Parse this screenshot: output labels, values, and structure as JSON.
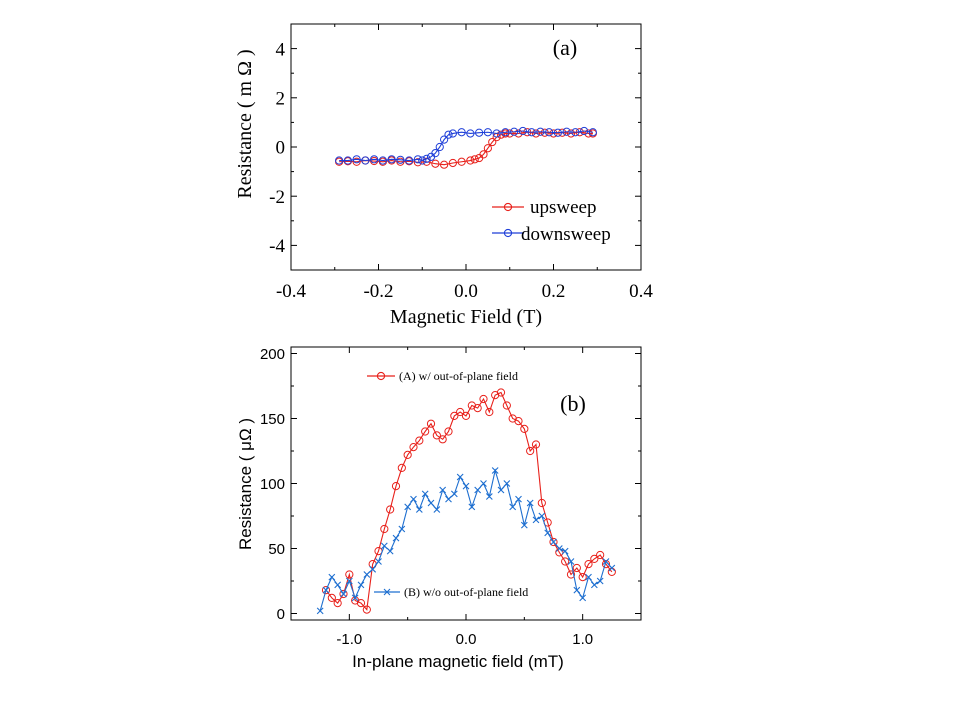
{
  "colors": {
    "red": "#e8201a",
    "blue": "#1f3fd8",
    "blue_b": "#1e6fd0",
    "axis": "#000000"
  },
  "chart_data": [
    {
      "type": "scatter",
      "panel_label": "(a)",
      "xlabel": "Magnetic Field (T)",
      "ylabel": "Resistance ( m Ω )",
      "xlim": [
        -0.4,
        0.4
      ],
      "ylim": [
        -5,
        5
      ],
      "xticks": [
        "-0.4",
        "-0.2",
        "0.0",
        "0.2",
        "0.4"
      ],
      "xtick_values": [
        -0.4,
        -0.2,
        0.0,
        0.2,
        0.4
      ],
      "yticks": [
        "4",
        "2",
        "0",
        "-2",
        "-4"
      ],
      "ytick_values": [
        4,
        2,
        0,
        -2,
        -4
      ],
      "legend_position": "bottom-right",
      "series": [
        {
          "name": "upsweep",
          "color": "red",
          "marker": "circle",
          "x": [
            -0.29,
            -0.27,
            -0.25,
            -0.23,
            -0.21,
            -0.19,
            -0.17,
            -0.15,
            -0.13,
            -0.11,
            -0.09,
            -0.07,
            -0.05,
            -0.03,
            -0.01,
            0.01,
            0.02,
            0.03,
            0.04,
            0.05,
            0.06,
            0.07,
            0.08,
            0.09,
            0.1,
            0.12,
            0.14,
            0.16,
            0.18,
            0.2,
            0.22,
            0.24,
            0.26,
            0.28,
            0.29
          ],
          "y": [
            -0.6,
            -0.58,
            -0.6,
            -0.55,
            -0.57,
            -0.6,
            -0.55,
            -0.6,
            -0.58,
            -0.62,
            -0.6,
            -0.68,
            -0.72,
            -0.65,
            -0.6,
            -0.55,
            -0.5,
            -0.45,
            -0.3,
            -0.05,
            0.2,
            0.4,
            0.5,
            0.55,
            0.55,
            0.55,
            0.6,
            0.55,
            0.58,
            0.55,
            0.58,
            0.55,
            0.6,
            0.55,
            0.55
          ]
        },
        {
          "name": "downsweep",
          "color": "blue",
          "marker": "circle",
          "x": [
            0.29,
            0.27,
            0.25,
            0.23,
            0.21,
            0.19,
            0.17,
            0.15,
            0.13,
            0.11,
            0.09,
            0.07,
            0.05,
            0.03,
            0.01,
            -0.01,
            -0.03,
            -0.04,
            -0.05,
            -0.06,
            -0.07,
            -0.08,
            -0.09,
            -0.1,
            -0.11,
            -0.13,
            -0.15,
            -0.17,
            -0.19,
            -0.21,
            -0.23,
            -0.25,
            -0.27,
            -0.29
          ],
          "y": [
            0.6,
            0.65,
            0.6,
            0.62,
            0.58,
            0.6,
            0.62,
            0.6,
            0.65,
            0.62,
            0.6,
            0.55,
            0.6,
            0.58,
            0.55,
            0.6,
            0.55,
            0.5,
            0.3,
            0.0,
            -0.25,
            -0.4,
            -0.48,
            -0.55,
            -0.5,
            -0.55,
            -0.52,
            -0.5,
            -0.55,
            -0.5,
            -0.55,
            -0.5,
            -0.55,
            -0.55
          ]
        }
      ]
    },
    {
      "type": "line",
      "panel_label": "(b)",
      "xlabel": "In-plane magnetic field (mT)",
      "ylabel": "Resistance ( μΩ )",
      "xlim": [
        -1.5,
        1.5
      ],
      "ylim": [
        -5,
        205
      ],
      "xticks": [
        "-1.0",
        "0.0",
        "1.0"
      ],
      "xtick_values": [
        -1.0,
        0.0,
        1.0
      ],
      "yticks": [
        "200",
        "150",
        "100",
        "50",
        "0"
      ],
      "ytick_values": [
        200,
        150,
        100,
        50,
        0
      ],
      "series": [
        {
          "name": "(A) w/ out-of-plane field",
          "color": "red",
          "marker": "circle",
          "x": [
            -1.2,
            -1.15,
            -1.1,
            -1.05,
            -1.0,
            -0.95,
            -0.9,
            -0.85,
            -0.8,
            -0.75,
            -0.7,
            -0.65,
            -0.6,
            -0.55,
            -0.5,
            -0.45,
            -0.4,
            -0.35,
            -0.3,
            -0.25,
            -0.2,
            -0.15,
            -0.1,
            -0.05,
            0.0,
            0.05,
            0.1,
            0.15,
            0.2,
            0.25,
            0.3,
            0.35,
            0.4,
            0.45,
            0.5,
            0.55,
            0.6,
            0.65,
            0.7,
            0.75,
            0.8,
            0.85,
            0.9,
            0.95,
            1.0,
            1.05,
            1.1,
            1.15,
            1.2,
            1.25
          ],
          "y": [
            18,
            12,
            8,
            15,
            30,
            10,
            8,
            3,
            38,
            48,
            65,
            80,
            98,
            112,
            122,
            128,
            133,
            140,
            146,
            137,
            134,
            140,
            152,
            155,
            152,
            160,
            158,
            165,
            155,
            168,
            170,
            160,
            150,
            148,
            142,
            125,
            130,
            85,
            70,
            55,
            47,
            40,
            30,
            35,
            28,
            38,
            42,
            45,
            38,
            32
          ]
        },
        {
          "name": "(B) w/o out-of-plane field",
          "color": "blue_b",
          "marker": "x",
          "x": [
            -1.25,
            -1.2,
            -1.15,
            -1.1,
            -1.05,
            -1.0,
            -0.95,
            -0.9,
            -0.85,
            -0.8,
            -0.75,
            -0.7,
            -0.65,
            -0.6,
            -0.55,
            -0.5,
            -0.45,
            -0.4,
            -0.35,
            -0.3,
            -0.25,
            -0.2,
            -0.15,
            -0.1,
            -0.05,
            0.0,
            0.05,
            0.1,
            0.15,
            0.2,
            0.25,
            0.3,
            0.35,
            0.4,
            0.45,
            0.5,
            0.55,
            0.6,
            0.65,
            0.7,
            0.75,
            0.8,
            0.85,
            0.9,
            0.95,
            1.0,
            1.05,
            1.1,
            1.15,
            1.2,
            1.25
          ],
          "y": [
            2,
            18,
            28,
            22,
            15,
            25,
            12,
            22,
            30,
            34,
            40,
            52,
            48,
            58,
            65,
            82,
            88,
            80,
            92,
            85,
            80,
            95,
            88,
            92,
            105,
            98,
            82,
            95,
            100,
            90,
            110,
            95,
            100,
            82,
            88,
            68,
            85,
            72,
            75,
            62,
            55,
            50,
            48,
            40,
            18,
            12,
            28,
            22,
            25,
            40,
            35
          ]
        }
      ]
    }
  ]
}
